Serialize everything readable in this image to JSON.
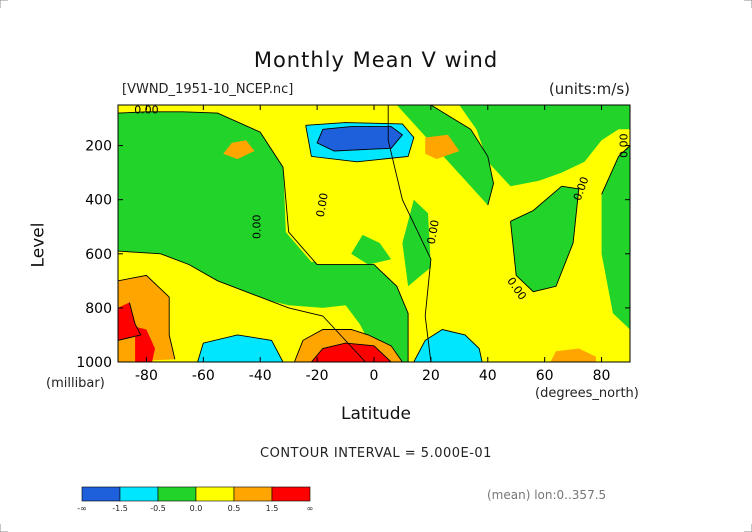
{
  "chart_data": {
    "type": "contour",
    "title": "Monthly Mean V wind",
    "file_label": "[VWND_1951-10_NCEP.nc]",
    "units_label": "(units:m/s)",
    "ylabel": "Level",
    "yunits": "(millibar)",
    "xlabel": "Latitude",
    "xunits": "(degrees_north)",
    "x_ticks": [
      "-80",
      "-60",
      "-40",
      "-20",
      "0",
      "20",
      "40",
      "60",
      "80"
    ],
    "x_tick_values": [
      -80,
      -60,
      -40,
      -20,
      0,
      20,
      40,
      60,
      80
    ],
    "y_ticks": [
      "200",
      "400",
      "600",
      "800",
      "1000"
    ],
    "y_tick_values": [
      200,
      400,
      600,
      800,
      1000
    ],
    "xlim": [
      -90,
      90
    ],
    "ylim": [
      1000,
      50
    ],
    "contour_interval_label": "CONTOUR INTERVAL = 5.000E-01",
    "mean_label": "(mean) lon:0..357.5",
    "contour_labels": [
      {
        "text": "0.00",
        "x": -80,
        "y": 70,
        "rotate": 0
      },
      {
        "text": "0.00",
        "x": -41,
        "y": 500,
        "rotate": -90
      },
      {
        "text": "0.00",
        "x": -18,
        "y": 420,
        "rotate": -80
      },
      {
        "text": "0.00",
        "x": 21,
        "y": 520,
        "rotate": -80
      },
      {
        "text": "0.00",
        "x": 50,
        "y": 730,
        "rotate": 55
      },
      {
        "text": "0.00",
        "x": 73,
        "y": 360,
        "rotate": -70
      },
      {
        "text": "0.00",
        "x": 88,
        "y": 200,
        "rotate": -90
      }
    ],
    "levels": [
      {
        "range": "< -1.5",
        "color": "#1e5fdc"
      },
      {
        "range": "-1.5 to -0.5",
        "color": "#00e6ff"
      },
      {
        "range": "-0.5 to 0.0",
        "color": "#22d42a"
      },
      {
        "range": "0.0 to 0.5",
        "color": "#ffff00"
      },
      {
        "range": "0.5 to 1.5",
        "color": "#ffa500"
      },
      {
        "range": "> 1.5",
        "color": "#ff0000"
      }
    ],
    "colorbar_ticks": [
      "-∞",
      "-1.5",
      "-0.5",
      "0.0",
      "0.5",
      "1.5",
      "∞"
    ],
    "regions": [
      {
        "color": "#22d42a",
        "pts": [
          [
            -90,
            50
          ],
          [
            -55,
            50
          ],
          [
            -55,
            80
          ],
          [
            -40,
            150
          ],
          [
            -32,
            280
          ],
          [
            -30,
            520
          ],
          [
            -20,
            640
          ],
          [
            0,
            640
          ],
          [
            8,
            720
          ],
          [
            12,
            820
          ],
          [
            12,
            1000
          ],
          [
            -3,
            1000
          ],
          [
            -18,
            830
          ],
          [
            -30,
            800
          ],
          [
            -40,
            760
          ],
          [
            -55,
            700
          ],
          [
            -65,
            640
          ],
          [
            -75,
            600
          ],
          [
            -90,
            590
          ]
        ]
      },
      {
        "color": "#ffff00",
        "pts": [
          [
            -90,
            50
          ],
          [
            -55,
            50
          ],
          [
            -55,
            80
          ],
          [
            -67,
            75
          ],
          [
            -80,
            75
          ],
          [
            -90,
            80
          ]
        ]
      },
      {
        "color": "#ffff00",
        "pts": [
          [
            -52,
            50
          ],
          [
            -40,
            50
          ],
          [
            -37,
            110
          ],
          [
            -32,
            250
          ],
          [
            -31,
            520
          ],
          [
            -22,
            630
          ],
          [
            -6,
            620
          ],
          [
            -2,
            480
          ],
          [
            -8,
            280
          ],
          [
            -20,
            240
          ],
          [
            -15,
            100
          ],
          [
            -8,
            75
          ],
          [
            -15,
            50
          ]
        ]
      },
      {
        "color": "#ffff00",
        "pts": [
          [
            -86,
            595
          ],
          [
            -75,
            610
          ],
          [
            -65,
            650
          ],
          [
            -55,
            700
          ],
          [
            -42,
            760
          ],
          [
            -30,
            790
          ],
          [
            -18,
            800
          ],
          [
            -10,
            790
          ],
          [
            -5,
            860
          ],
          [
            2,
            1000
          ],
          [
            -90,
            1000
          ]
        ]
      },
      {
        "color": "#ffff00",
        "pts": [
          [
            5,
            50
          ],
          [
            18,
            60
          ],
          [
            32,
            150
          ],
          [
            38,
            260
          ],
          [
            40,
            400
          ],
          [
            32,
            520
          ],
          [
            38,
            640
          ],
          [
            48,
            700
          ],
          [
            56,
            760
          ],
          [
            64,
            770
          ],
          [
            72,
            700
          ],
          [
            78,
            480
          ],
          [
            84,
            350
          ],
          [
            86,
            180
          ],
          [
            90,
            150
          ],
          [
            90,
            1000
          ],
          [
            20,
            1000
          ],
          [
            18,
            830
          ],
          [
            20,
            620
          ],
          [
            10,
            400
          ],
          [
            5,
            180
          ]
        ]
      },
      {
        "color": "#ffff00",
        "pts": [
          [
            -58,
            50
          ],
          [
            -52,
            50
          ],
          [
            -52,
            70
          ]
        ]
      },
      {
        "color": "#ffff00",
        "pts": [
          [
            -6,
            110
          ],
          [
            5,
            120
          ],
          [
            12,
            190
          ],
          [
            5,
            340
          ],
          [
            -5,
            380
          ],
          [
            -14,
            320
          ],
          [
            -17,
            160
          ]
        ]
      },
      {
        "color": "#22d42a",
        "pts": [
          [
            14,
            400
          ],
          [
            19,
            450
          ],
          [
            20,
            650
          ],
          [
            12,
            720
          ],
          [
            10,
            560
          ]
        ]
      },
      {
        "color": "#22d42a",
        "pts": [
          [
            -4,
            530
          ],
          [
            2,
            560
          ],
          [
            6,
            620
          ],
          [
            -2,
            640
          ],
          [
            -8,
            600
          ]
        ]
      },
      {
        "color": "#22d42a",
        "pts": [
          [
            8,
            50
          ],
          [
            20,
            50
          ],
          [
            34,
            140
          ],
          [
            40,
            240
          ],
          [
            42,
            340
          ],
          [
            40,
            420
          ]
        ]
      },
      {
        "color": "#22d42a",
        "pts": [
          [
            48,
            480
          ],
          [
            56,
            440
          ],
          [
            66,
            350
          ],
          [
            72,
            360
          ],
          [
            70,
            560
          ],
          [
            64,
            720
          ],
          [
            56,
            740
          ],
          [
            50,
            680
          ]
        ]
      },
      {
        "color": "#22d42a",
        "pts": [
          [
            80,
            380
          ],
          [
            86,
            240
          ],
          [
            90,
            200
          ],
          [
            90,
            880
          ],
          [
            84,
            820
          ],
          [
            80,
            600
          ]
        ]
      },
      {
        "color": "#22d42a",
        "pts": [
          [
            30,
            50
          ],
          [
            90,
            50
          ],
          [
            90,
            140
          ],
          [
            86,
            140
          ],
          [
            80,
            180
          ],
          [
            74,
            260
          ],
          [
            66,
            300
          ],
          [
            58,
            330
          ],
          [
            48,
            350
          ],
          [
            40,
            260
          ],
          [
            36,
            140
          ]
        ]
      },
      {
        "color": "#ffa500",
        "pts": [
          [
            -90,
            700
          ],
          [
            -80,
            680
          ],
          [
            -72,
            760
          ],
          [
            -72,
            900
          ],
          [
            -70,
            990
          ],
          [
            -90,
            1000
          ]
        ]
      },
      {
        "color": "#ff0000",
        "pts": [
          [
            -90,
            800
          ],
          [
            -86,
            780
          ],
          [
            -84,
            860
          ],
          [
            -82,
            900
          ],
          [
            -90,
            920
          ]
        ]
      },
      {
        "color": "#ff0000",
        "pts": [
          [
            -84,
            870
          ],
          [
            -80,
            880
          ],
          [
            -77,
            950
          ],
          [
            -78,
            1000
          ],
          [
            -84,
            1000
          ]
        ]
      },
      {
        "color": "#00e6ff",
        "pts": [
          [
            -62,
            1000
          ],
          [
            -60,
            930
          ],
          [
            -48,
            900
          ],
          [
            -36,
            920
          ],
          [
            -32,
            1000
          ]
        ]
      },
      {
        "color": "#00e6ff",
        "pts": [
          [
            -24,
            125
          ],
          [
            -10,
            115
          ],
          [
            10,
            120
          ],
          [
            14,
            170
          ],
          [
            12,
            240
          ],
          [
            -6,
            260
          ],
          [
            -22,
            240
          ]
        ]
      },
      {
        "color": "#1e5fdc",
        "pts": [
          [
            -18,
            140
          ],
          [
            -8,
            130
          ],
          [
            6,
            130
          ],
          [
            10,
            160
          ],
          [
            6,
            210
          ],
          [
            -14,
            220
          ],
          [
            -20,
            190
          ]
        ]
      },
      {
        "color": "#ffa500",
        "pts": [
          [
            -28,
            1000
          ],
          [
            -25,
            920
          ],
          [
            -18,
            880
          ],
          [
            -8,
            880
          ],
          [
            -2,
            900
          ],
          [
            6,
            940
          ],
          [
            10,
            1000
          ]
        ]
      },
      {
        "color": "#ff0000",
        "pts": [
          [
            -22,
            1000
          ],
          [
            -18,
            950
          ],
          [
            -10,
            930
          ],
          [
            0,
            940
          ],
          [
            6,
            1000
          ]
        ]
      },
      {
        "color": "#00e6ff",
        "pts": [
          [
            14,
            1000
          ],
          [
            18,
            920
          ],
          [
            24,
            880
          ],
          [
            32,
            900
          ],
          [
            37,
            950
          ],
          [
            38,
            1000
          ]
        ]
      },
      {
        "color": "#ffa500",
        "pts": [
          [
            -50,
            190
          ],
          [
            -45,
            180
          ],
          [
            -42,
            220
          ],
          [
            -48,
            250
          ],
          [
            -53,
            230
          ]
        ]
      },
      {
        "color": "#ffa500",
        "pts": [
          [
            18,
            170
          ],
          [
            26,
            160
          ],
          [
            30,
            220
          ],
          [
            22,
            250
          ],
          [
            18,
            230
          ]
        ]
      },
      {
        "color": "#ffa500",
        "pts": [
          [
            62,
            1000
          ],
          [
            64,
            960
          ],
          [
            72,
            950
          ],
          [
            78,
            980
          ],
          [
            78,
            1000
          ]
        ]
      }
    ],
    "contour_lines": [
      [
        [
          -90,
          80
        ],
        [
          -80,
          75
        ],
        [
          -67,
          75
        ],
        [
          -55,
          80
        ],
        [
          -40,
          150
        ],
        [
          -32,
          280
        ],
        [
          -30,
          520
        ],
        [
          -20,
          640
        ],
        [
          0,
          640
        ],
        [
          8,
          720
        ],
        [
          12,
          820
        ],
        [
          12,
          1000
        ]
      ],
      [
        [
          -90,
          590
        ],
        [
          -75,
          600
        ],
        [
          -65,
          640
        ],
        [
          -55,
          700
        ],
        [
          -40,
          760
        ],
        [
          -30,
          800
        ],
        [
          -18,
          830
        ],
        [
          -3,
          1000
        ]
      ],
      [
        [
          5,
          50
        ],
        [
          5,
          180
        ],
        [
          10,
          400
        ],
        [
          20,
          620
        ],
        [
          18,
          830
        ],
        [
          20,
          1000
        ]
      ],
      [
        [
          40,
          420
        ],
        [
          42,
          340
        ],
        [
          40,
          240
        ],
        [
          34,
          140
        ],
        [
          20,
          50
        ]
      ],
      [
        [
          48,
          480
        ],
        [
          56,
          440
        ],
        [
          66,
          350
        ],
        [
          72,
          360
        ],
        [
          70,
          560
        ],
        [
          64,
          720
        ],
        [
          56,
          740
        ],
        [
          50,
          680
        ],
        [
          48,
          480
        ]
      ],
      [
        [
          80,
          380
        ],
        [
          86,
          240
        ],
        [
          90,
          200
        ]
      ],
      [
        [
          -18,
          140
        ],
        [
          -8,
          130
        ],
        [
          6,
          130
        ],
        [
          10,
          160
        ],
        [
          6,
          210
        ],
        [
          -14,
          220
        ],
        [
          -20,
          190
        ],
        [
          -18,
          140
        ]
      ],
      [
        [
          -24,
          125
        ],
        [
          -10,
          115
        ],
        [
          10,
          120
        ],
        [
          14,
          170
        ],
        [
          12,
          240
        ],
        [
          -6,
          260
        ],
        [
          -22,
          240
        ],
        [
          -24,
          125
        ]
      ],
      [
        [
          -62,
          1000
        ],
        [
          -60,
          930
        ],
        [
          -48,
          900
        ],
        [
          -36,
          920
        ],
        [
          -32,
          1000
        ]
      ],
      [
        [
          14,
          1000
        ],
        [
          18,
          920
        ],
        [
          24,
          880
        ],
        [
          32,
          900
        ],
        [
          37,
          950
        ],
        [
          38,
          1000
        ]
      ],
      [
        [
          -28,
          1000
        ],
        [
          -25,
          920
        ],
        [
          -18,
          880
        ],
        [
          -8,
          880
        ],
        [
          -2,
          900
        ],
        [
          6,
          940
        ],
        [
          10,
          1000
        ]
      ],
      [
        [
          -22,
          1000
        ],
        [
          -18,
          950
        ],
        [
          -10,
          930
        ],
        [
          0,
          940
        ],
        [
          6,
          1000
        ]
      ],
      [
        [
          -90,
          700
        ],
        [
          -80,
          680
        ],
        [
          -72,
          760
        ],
        [
          -72,
          900
        ],
        [
          -70,
          990
        ]
      ],
      [
        [
          -86,
          780
        ],
        [
          -84,
          860
        ],
        [
          -82,
          900
        ],
        [
          -90,
          920
        ]
      ]
    ]
  }
}
